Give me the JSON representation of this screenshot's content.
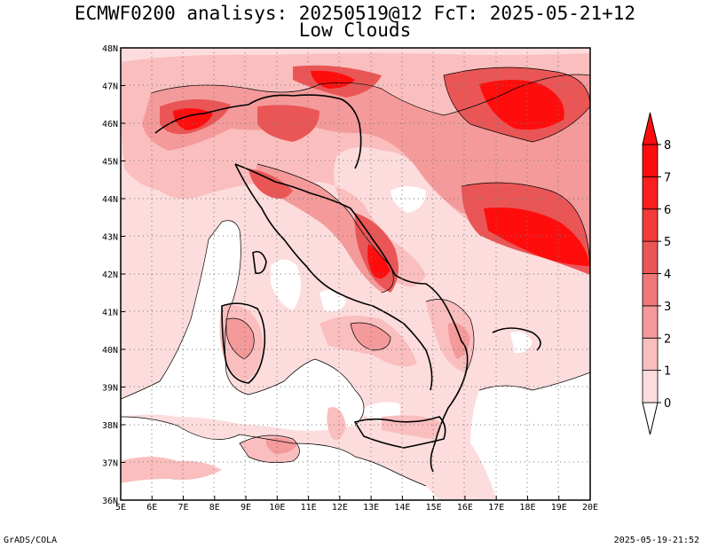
{
  "title_line1": "ECMWF0200 analisys: 20250519@12 FcT: 2025-05-21+12",
  "title_line2": "Low Clouds",
  "footer_left": "GrADS/COLA",
  "footer_right": "2025-05-19-21:52",
  "map": {
    "lon_range": [
      5,
      20
    ],
    "lat_range": [
      36,
      48
    ],
    "lon_labels": [
      "5E",
      "6E",
      "7E",
      "8E",
      "9E",
      "10E",
      "11E",
      "12E",
      "13E",
      "14E",
      "15E",
      "16E",
      "17E",
      "18E",
      "19E",
      "20E"
    ],
    "lat_labels": [
      "36N",
      "37N",
      "38N",
      "39N",
      "40N",
      "41N",
      "42N",
      "43N",
      "44N",
      "45N",
      "46N",
      "47N",
      "48N"
    ],
    "grid": "dotted",
    "field": "low cloud cover (oktas)"
  },
  "colorbar": {
    "levels": [
      "0",
      "1",
      "2",
      "3",
      "4",
      "5",
      "6",
      "7",
      "8"
    ],
    "colors": [
      "#ffffff",
      "#fcdcdc",
      "#fabebe",
      "#f49a9a",
      "#ef7878",
      "#ea5656",
      "#f23a3a",
      "#fb1e1e",
      "#ff0d0d"
    ],
    "extends": "both"
  }
}
